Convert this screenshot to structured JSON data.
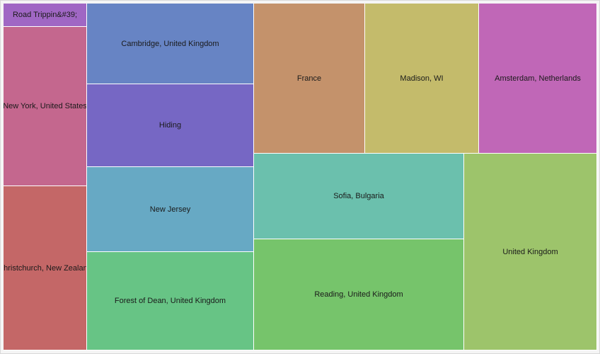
{
  "chart_data": {
    "type": "treemap",
    "tiles": [
      {
        "label": "Road Trippin&#39;",
        "color": "#a067c4"
      },
      {
        "label": "New York, United States",
        "color": "#c4678e"
      },
      {
        "label": "Christchurch, New Zealand",
        "color": "#c46767"
      },
      {
        "label": "Cambridge, United Kingdom",
        "color": "#6784c4"
      },
      {
        "label": "Hiding",
        "color": "#7667c4"
      },
      {
        "label": "New Jersey",
        "color": "#67a9c4"
      },
      {
        "label": "Forest of Dean, United Kingdom",
        "color": "#67c485"
      },
      {
        "label": "France",
        "color": "#c4926b"
      },
      {
        "label": "Madison, WI",
        "color": "#c4bb6b"
      },
      {
        "label": "Amsterdam, Netherlands",
        "color": "#c067b7"
      },
      {
        "label": "Sofia, Bulgaria",
        "color": "#6bc0ad"
      },
      {
        "label": "Reading, United Kingdom",
        "color": "#76c46b"
      },
      {
        "label": "United Kingdom",
        "color": "#9dc46b"
      }
    ]
  }
}
